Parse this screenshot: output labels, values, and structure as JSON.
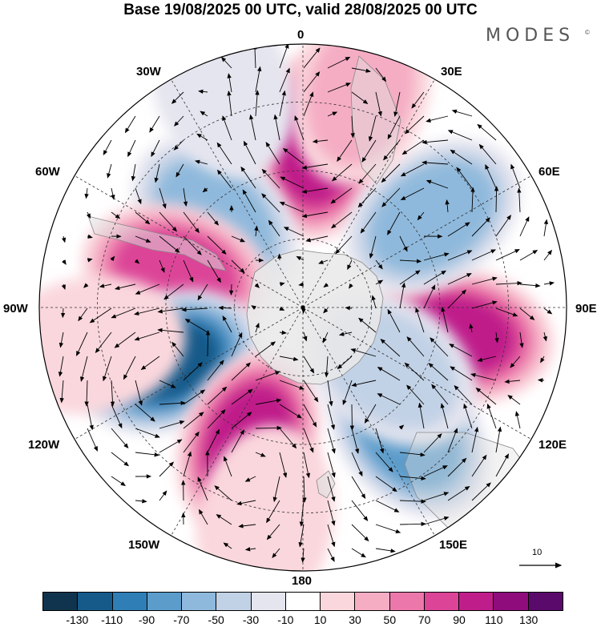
{
  "title": "Base 19/08/2025 00 UTC, valid 28/08/2025 00 UTC",
  "brand": {
    "name": "MODES",
    "mark": "©"
  },
  "map": {
    "projection": "south-polar-stereographic",
    "field": "anomaly (shaded) with wind vectors",
    "meridian_labels": {
      "deg0": "0",
      "e30": "30E",
      "e60": "60E",
      "e90": "90E",
      "e120": "120E",
      "e150": "150E",
      "deg180": "180",
      "w150": "150W",
      "w120": "120W",
      "w90": "90W",
      "w60": "60W",
      "w30": "30W"
    },
    "anomalies": [
      {
        "lon": 5,
        "colat": 0.62,
        "value": 110
      },
      {
        "lon": -45,
        "colat": 0.47,
        "value": -70
      },
      {
        "lon": -75,
        "colat": 0.5,
        "value": 90
      },
      {
        "lon": -112,
        "colat": 0.55,
        "value": -120
      },
      {
        "lon": -158,
        "colat": 0.55,
        "value": 110
      },
      {
        "lon": 140,
        "colat": 0.62,
        "value": -90
      },
      {
        "lon": 100,
        "colat": 0.6,
        "value": 100
      },
      {
        "lon": 55,
        "colat": 0.6,
        "value": -70
      },
      {
        "lon": -170,
        "colat": 0.82,
        "value": 30
      },
      {
        "lon": -100,
        "colat": 0.82,
        "value": 30
      },
      {
        "lon": 15,
        "colat": 0.85,
        "value": 40
      },
      {
        "lon": 125,
        "colat": 0.4,
        "value": -40
      },
      {
        "lon": -20,
        "colat": 0.9,
        "value": -30
      }
    ],
    "vector_reference": {
      "label": "10",
      "value": 10
    }
  },
  "colorbar": {
    "colors": [
      "#10344e",
      "#165a8a",
      "#2f7fb6",
      "#5c9ccb",
      "#8fb9dc",
      "#c2d2e6",
      "#e5e5ef",
      "#ffffff",
      "#fad7dd",
      "#f5adc4",
      "#ec78ab",
      "#dc4497",
      "#bf1e8a",
      "#8e0c7c",
      "#5a0a6b"
    ],
    "tick_labels": [
      "-130",
      "-110",
      "-90",
      "-70",
      "-50",
      "-30",
      "-10",
      "10",
      "30",
      "50",
      "70",
      "90",
      "110",
      "130"
    ]
  }
}
